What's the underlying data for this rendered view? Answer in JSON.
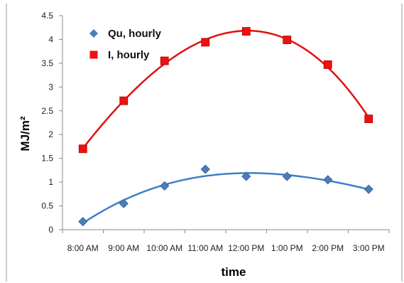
{
  "chart_data": {
    "type": "scatter",
    "title": "",
    "xlabel": "time",
    "ylabel": "MJ/m²",
    "categories": [
      "8:00 AM",
      "9:00 AM",
      "10:00 AM",
      "11:00 AM",
      "12:00 PM",
      "1:00 PM",
      "2:00 PM",
      "3:00 PM"
    ],
    "ylim": [
      0,
      4.5
    ],
    "yticks": [
      "0",
      "0.5",
      "1",
      "1.5",
      "2",
      "2.5",
      "3",
      "3.5",
      "4",
      "4.5"
    ],
    "grid": false,
    "legend_position": "top-left",
    "series": [
      {
        "name": "Qu, hourly",
        "marker": "diamond",
        "color": "#4a7ebb",
        "trend_color": "#3f7fc8",
        "values": [
          0.17,
          0.55,
          0.92,
          1.27,
          1.12,
          1.12,
          1.05,
          0.85
        ]
      },
      {
        "name": "I, hourly",
        "marker": "square",
        "color": "#ee1111",
        "trend_color": "#e31010",
        "values": [
          1.7,
          2.71,
          3.55,
          3.94,
          4.17,
          3.99,
          3.47,
          2.33
        ]
      }
    ]
  }
}
